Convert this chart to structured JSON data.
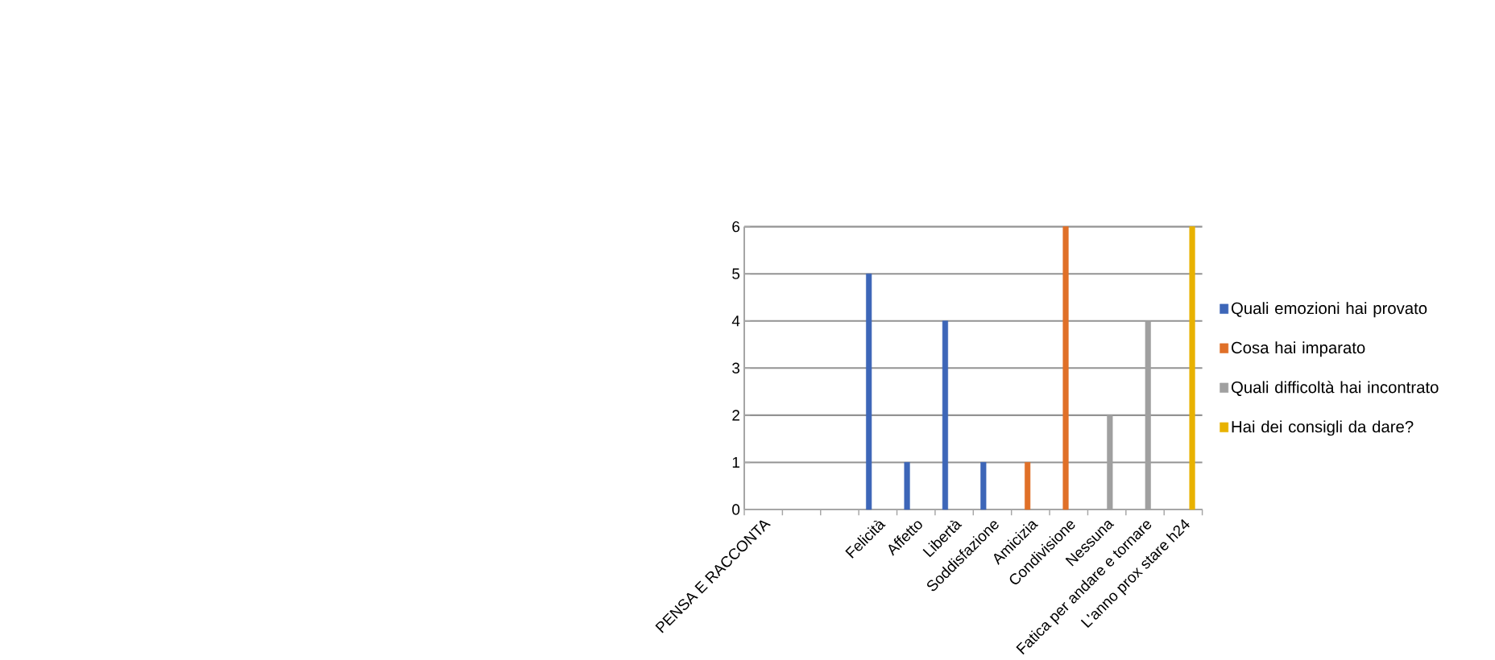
{
  "chart_data": {
    "type": "bar",
    "categories": [
      "PENSA E RACCONTA",
      null,
      null,
      "Felicità",
      "Affetto",
      "Libertà",
      "Soddisfazione",
      "Amicizia",
      "Condivisione",
      "Nessuna",
      "Fatica per andare e tornare",
      "L'anno prox stare h24"
    ],
    "series": [
      {
        "name": "Quali emozioni hai provato",
        "color": "#3d66b8",
        "values": [
          null,
          null,
          null,
          5,
          1,
          4,
          1,
          null,
          null,
          null,
          null,
          null
        ]
      },
      {
        "name": "Cosa hai imparato",
        "color": "#e07028",
        "values": [
          null,
          null,
          null,
          null,
          null,
          null,
          null,
          1,
          6,
          null,
          null,
          null
        ]
      },
      {
        "name": "Quali difficoltà hai incontrato",
        "color": "#a0a0a0",
        "values": [
          null,
          null,
          null,
          null,
          null,
          null,
          null,
          null,
          null,
          2,
          4,
          null
        ]
      },
      {
        "name": "Hai dei consigli da dare?",
        "color": "#e8b200",
        "values": [
          null,
          null,
          null,
          null,
          null,
          null,
          null,
          null,
          null,
          null,
          null,
          6
        ]
      }
    ],
    "ylim": [
      0,
      6
    ],
    "yticks": [
      0,
      1,
      2,
      3,
      4,
      5,
      6
    ],
    "grid": "y",
    "legend": "right"
  }
}
